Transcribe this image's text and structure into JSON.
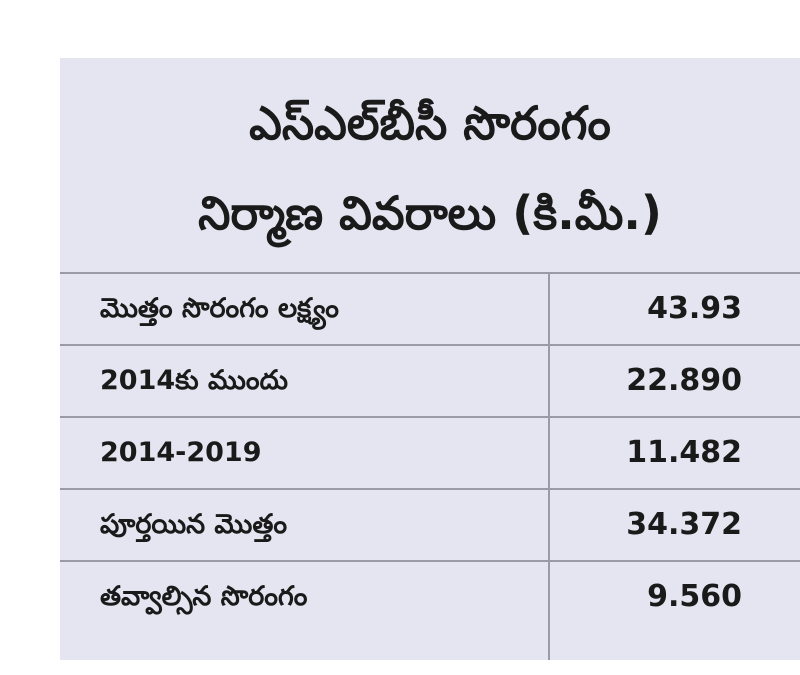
{
  "header": {
    "title_lines": [
      "ఎస్ఎల్‌బీసీ సొరంగం",
      "నిర్మాణ వివరాలు (కి.మీ.)"
    ]
  },
  "table": {
    "rows": [
      [
        "మొత్తం సొరంగం లక్ష్యం",
        "43.93"
      ],
      [
        "2014కు ముందు",
        "22.890"
      ],
      [
        "2014-2019",
        "11.482"
      ],
      [
        "పూర్తయిన మొత్తం",
        "34.372"
      ],
      [
        "తవ్వాల్సిన సొరంగం",
        "9.560"
      ]
    ]
  }
}
